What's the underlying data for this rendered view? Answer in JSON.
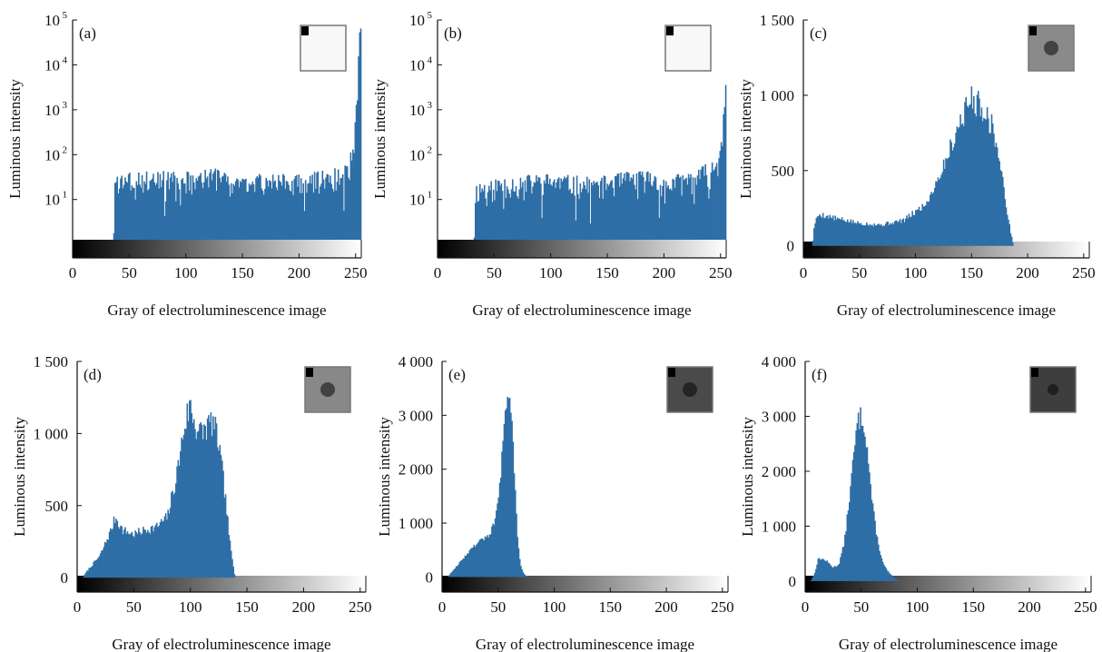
{
  "colors": {
    "bar": "#2e6ea6",
    "axis": "#111111",
    "inset_frame": "#777777"
  },
  "chart_data": [
    {
      "type": "bar",
      "panel": "(a)",
      "xlabel": "Gray of electroluminescence image",
      "ylabel": "Luminous intensity",
      "xlim": [
        0,
        255
      ],
      "ylim": [
        0.5,
        100000
      ],
      "yscale": "log",
      "xticks": [
        0,
        50,
        100,
        150,
        200,
        250
      ],
      "xtick_labels": [
        "0",
        "50",
        "100",
        "150",
        "200",
        "250"
      ],
      "yticks": [
        10,
        100,
        1000,
        10000,
        100000
      ],
      "ytick_labels": [
        {
          "base": "10",
          "exp": "1"
        },
        {
          "base": "10",
          "exp": "2"
        },
        {
          "base": "10",
          "exp": "3"
        },
        {
          "base": "10",
          "exp": "4"
        },
        {
          "base": "10",
          "exp": "5"
        }
      ],
      "profile_x": [
        0,
        36,
        37,
        38,
        60,
        100,
        130,
        150,
        180,
        200,
        230,
        244,
        250,
        253,
        255
      ],
      "profile_y": [
        0,
        0,
        5,
        28,
        28,
        28,
        32,
        22,
        27,
        24,
        32,
        40,
        120,
        2000,
        50000
      ],
      "noise": 0.55,
      "seed": 3,
      "inset": {
        "kind": "dark-corner",
        "tone": "#f8f8f8",
        "center_tone": "#f8f8f8",
        "spot": "#f8f8f8"
      },
      "colorbar": {
        "from": 0,
        "to": 255
      },
      "grid": false,
      "legend": "none"
    },
    {
      "type": "bar",
      "panel": "(b)",
      "xlabel": "Gray of electroluminescence image",
      "ylabel": "Luminous intensity",
      "xlim": [
        0,
        255
      ],
      "ylim": [
        0.5,
        100000
      ],
      "yscale": "log",
      "xticks": [
        0,
        50,
        100,
        150,
        200,
        250
      ],
      "xtick_labels": [
        "0",
        "50",
        "100",
        "150",
        "200",
        "250"
      ],
      "yticks": [
        10,
        100,
        1000,
        10000,
        100000
      ],
      "ytick_labels": [
        {
          "base": "10",
          "exp": "1"
        },
        {
          "base": "10",
          "exp": "2"
        },
        {
          "base": "10",
          "exp": "3"
        },
        {
          "base": "10",
          "exp": "4"
        },
        {
          "base": "10",
          "exp": "5"
        }
      ],
      "profile_x": [
        0,
        32,
        33,
        34,
        60,
        100,
        140,
        170,
        190,
        200,
        230,
        245,
        250,
        253,
        255
      ],
      "profile_y": [
        0,
        0,
        4,
        16,
        22,
        25,
        20,
        28,
        30,
        20,
        30,
        50,
        80,
        300,
        3000
      ],
      "noise": 0.55,
      "seed": 11,
      "inset": {
        "kind": "dark-corner",
        "tone": "#f8f8f8",
        "center_tone": "#f8f8f8",
        "spot": "#f8f8f8"
      },
      "colorbar": {
        "from": 0,
        "to": 255
      },
      "grid": false,
      "legend": "none"
    },
    {
      "type": "bar",
      "panel": "(c)",
      "xlabel": "Gray of electroluminescence image",
      "ylabel": "Luminous intensity",
      "xlim": [
        0,
        255
      ],
      "ylim": [
        -80,
        1500
      ],
      "yscale": "linear",
      "xticks": [
        0,
        50,
        100,
        150,
        200,
        250
      ],
      "xtick_labels": [
        "0",
        "50",
        "100",
        "150",
        "200",
        "250"
      ],
      "yticks": [
        0,
        500,
        1000,
        1500
      ],
      "ytick_labels": [
        "0",
        "500",
        "1 000",
        "1 500"
      ],
      "profile_x": [
        0,
        8,
        10,
        14,
        30,
        50,
        70,
        90,
        110,
        125,
        140,
        150,
        160,
        170,
        178,
        184,
        188,
        255
      ],
      "profile_y": [
        0,
        0,
        150,
        210,
        180,
        150,
        140,
        170,
        280,
        520,
        820,
        980,
        920,
        780,
        450,
        150,
        0,
        0
      ],
      "noise": 0.1,
      "seed": 5,
      "inset": {
        "kind": "spot",
        "tone": "#8a8a8a",
        "center_tone": "#8a8a8a",
        "spot": "#3a3a3a"
      },
      "colorbar": {
        "from": 0,
        "to": 255
      },
      "grid": false,
      "legend": "none"
    },
    {
      "type": "bar",
      "panel": "(d)",
      "xlabel": "Gray of electroluminescence image",
      "ylabel": "Luminous intensity",
      "xlim": [
        0,
        255
      ],
      "ylim": [
        -100,
        1500
      ],
      "yscale": "linear",
      "xticks": [
        0,
        50,
        100,
        150,
        200,
        250
      ],
      "xtick_labels": [
        "0",
        "50",
        "100",
        "150",
        "200",
        "250"
      ],
      "yticks": [
        0,
        500,
        1000,
        1500
      ],
      "ytick_labels": [
        "0",
        "500",
        "1 000",
        "1 500"
      ],
      "profile_x": [
        0,
        5,
        8,
        20,
        30,
        34,
        40,
        50,
        60,
        70,
        80,
        88,
        95,
        100,
        105,
        110,
        115,
        120,
        125,
        130,
        136,
        140,
        255
      ],
      "profile_y": [
        0,
        0,
        40,
        150,
        330,
        420,
        330,
        300,
        330,
        350,
        420,
        700,
        1050,
        1200,
        1050,
        1000,
        1050,
        1080,
        950,
        650,
        200,
        0,
        0
      ],
      "noise": 0.1,
      "seed": 7,
      "inset": {
        "kind": "spot",
        "tone": "#888888",
        "center_tone": "#888888",
        "spot": "#3a3a3a"
      },
      "colorbar": {
        "from": 0,
        "to": 255
      },
      "grid": false,
      "legend": "none"
    },
    {
      "type": "bar",
      "panel": "(e)",
      "xlabel": "Gray of electroluminescence image",
      "ylabel": "Luminous intensity",
      "xlim": [
        0,
        255
      ],
      "ylim": [
        -280,
        4000
      ],
      "yscale": "linear",
      "xticks": [
        0,
        50,
        100,
        150,
        200,
        250
      ],
      "xtick_labels": [
        "0",
        "50",
        "100",
        "150",
        "200",
        "250"
      ],
      "yticks": [
        0,
        1000,
        2000,
        3000,
        4000
      ],
      "ytick_labels": [
        "0",
        "1 000",
        "2 000",
        "3 000",
        "4 000"
      ],
      "profile_x": [
        0,
        5,
        8,
        15,
        25,
        35,
        42,
        48,
        52,
        55,
        58,
        60,
        62,
        64,
        66,
        68,
        70,
        72,
        75,
        80,
        255
      ],
      "profile_y": [
        0,
        0,
        80,
        250,
        500,
        700,
        750,
        1100,
        1800,
        2600,
        3300,
        3500,
        3100,
        2200,
        1300,
        600,
        250,
        100,
        20,
        0,
        0
      ],
      "noise": 0.06,
      "seed": 9,
      "inset": {
        "kind": "spot",
        "tone": "#4a4a4a",
        "center_tone": "#4a4a4a",
        "spot": "#202020"
      },
      "colorbar": {
        "from": 0,
        "to": 255
      },
      "grid": false,
      "legend": "none"
    },
    {
      "type": "bar",
      "panel": "(f)",
      "xlabel": "Gray of electroluminescence image",
      "ylabel": "Luminous intensity",
      "xlim": [
        0,
        255
      ],
      "ylim": [
        -200,
        4000
      ],
      "yscale": "linear",
      "xticks": [
        0,
        50,
        100,
        150,
        200,
        250
      ],
      "xtick_labels": [
        "0",
        "50",
        "100",
        "150",
        "200",
        "250"
      ],
      "yticks": [
        0,
        1000,
        2000,
        3000,
        4000
      ],
      "ytick_labels": [
        "0",
        "1 000",
        "2 000",
        "3 000",
        "4 000"
      ],
      "profile_x": [
        0,
        5,
        8,
        12,
        18,
        25,
        30,
        35,
        40,
        44,
        47,
        50,
        53,
        56,
        60,
        65,
        70,
        75,
        80,
        85,
        255
      ],
      "profile_y": [
        0,
        0,
        120,
        420,
        380,
        250,
        300,
        700,
        1600,
        2400,
        2900,
        3000,
        2850,
        2300,
        1400,
        700,
        300,
        150,
        50,
        0,
        0
      ],
      "noise": 0.07,
      "seed": 13,
      "inset": {
        "kind": "blob",
        "tone": "#3e3e3e",
        "center_tone": "#3e3e3e",
        "spot": "#1c1c1c"
      },
      "colorbar": {
        "from": 0,
        "to": 255
      },
      "grid": false,
      "legend": "none"
    }
  ]
}
